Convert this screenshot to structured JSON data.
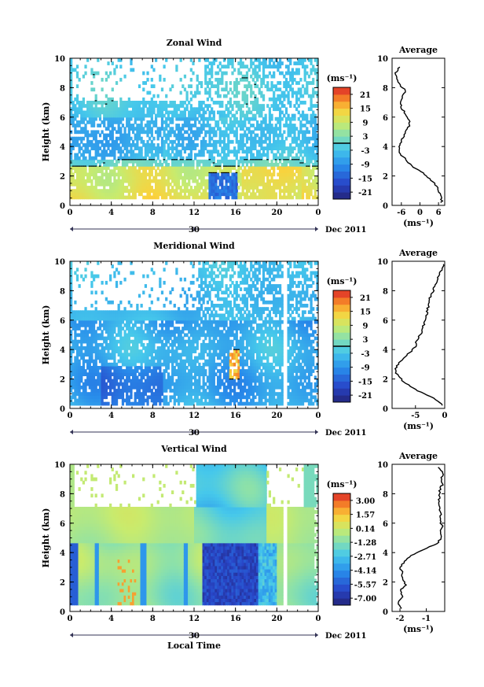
{
  "chart_data": [
    {
      "type": "heatmap",
      "title": "Zonal Wind",
      "ylabel": "Height (km)",
      "xlim": [
        0,
        24
      ],
      "ylim": [
        0,
        10
      ],
      "x_ticks": [
        "0",
        "4",
        "8",
        "12",
        "16",
        "20",
        "0"
      ],
      "y_ticks": [
        "0",
        "2",
        "4",
        "6",
        "8",
        "10"
      ],
      "date_tick": "30",
      "date_label": "Dec 2011",
      "colorbar": {
        "unit": "(ms⁻¹)",
        "range": [
          -24,
          24
        ],
        "ticks": [
          "21",
          "15",
          "9",
          "3",
          "-3",
          "-9",
          "-15",
          "-21"
        ],
        "contour_at": 0
      },
      "average": {
        "title": "Average",
        "xlabel": "(ms⁻¹)",
        "xlim": [
          -9,
          8
        ],
        "x_ticks": [
          "-6",
          "0",
          "6"
        ],
        "y_ticks": [
          "0",
          "2",
          "4",
          "6",
          "8",
          "10"
        ],
        "height": [
          0.2,
          0.6,
          1.0,
          1.4,
          1.8,
          2.2,
          2.6,
          3.0,
          3.4,
          3.8,
          4.2,
          4.6,
          5.0,
          5.4,
          5.8,
          6.2,
          6.6,
          7.0,
          7.4,
          7.8,
          8.2,
          8.6,
          9.0,
          9.4
        ],
        "values": [
          7,
          7,
          6,
          5,
          3,
          1,
          -2,
          -4,
          -6,
          -7,
          -6.5,
          -5.5,
          -4.5,
          -3.5,
          -3.5,
          -4.5,
          -5.8,
          -6.2,
          -5.5,
          -4.5,
          -6.5,
          -7.2,
          -8,
          -6.5
        ]
      }
    },
    {
      "type": "heatmap",
      "title": "Meridional Wind",
      "ylabel": "Height (km)",
      "xlim": [
        0,
        24
      ],
      "ylim": [
        0,
        10
      ],
      "x_ticks": [
        "0",
        "4",
        "8",
        "12",
        "16",
        "20",
        "0"
      ],
      "y_ticks": [
        "0",
        "2",
        "4",
        "6",
        "8",
        "10"
      ],
      "date_tick": "30",
      "date_label": "Dec 2011",
      "colorbar": {
        "unit": "(ms⁻¹)",
        "range": [
          -24,
          24
        ],
        "ticks": [
          "21",
          "15",
          "9",
          "3",
          "-3",
          "-9",
          "-15",
          "-21"
        ],
        "contour_at": 0
      },
      "average": {
        "title": "Average",
        "xlabel": "(ms⁻¹)",
        "xlim": [
          -9,
          0
        ],
        "x_ticks": [
          "-5",
          "0"
        ],
        "y_ticks": [
          "0",
          "2",
          "4",
          "6",
          "8",
          "10"
        ],
        "height": [
          0.2,
          0.6,
          1.0,
          1.4,
          1.8,
          2.2,
          2.6,
          3.0,
          3.4,
          3.8,
          4.2,
          4.6,
          5.0,
          5.4,
          5.8,
          6.2,
          6.6,
          7.0,
          7.4,
          7.8,
          8.2,
          8.6,
          9.0,
          9.4,
          9.8
        ],
        "values": [
          -0.3,
          -1.5,
          -3.5,
          -5.5,
          -7,
          -8,
          -8.5,
          -8,
          -7,
          -6,
          -5,
          -4.8,
          -4.2,
          -3.8,
          -3.5,
          -3.2,
          -3,
          -2.8,
          -2.6,
          -2.2,
          -1.8,
          -1.4,
          -1,
          -0.6,
          -0.2
        ]
      }
    },
    {
      "type": "heatmap",
      "title": "Vertical Wind",
      "ylabel": "Height (km)",
      "xlabel": "Local Time",
      "xlim": [
        0,
        24
      ],
      "ylim": [
        0,
        10
      ],
      "x_ticks": [
        "0",
        "4",
        "8",
        "12",
        "16",
        "20",
        "0"
      ],
      "y_ticks": [
        "0",
        "2",
        "4",
        "6",
        "8",
        "10"
      ],
      "date_tick": "30",
      "date_label": "Dec 2011",
      "colorbar": {
        "unit": "(ms⁻¹)",
        "range": [
          -7.8,
          3.8
        ],
        "ticks": [
          "3.00",
          "1.57",
          "0.14",
          "-1.28",
          "-2.71",
          "-4.14",
          "-5.57",
          "-7.00"
        ]
      },
      "average": {
        "title": "Average",
        "xlabel": "(ms⁻¹)",
        "xlim": [
          -2.3,
          -0.3
        ],
        "x_ticks": [
          "-2",
          "-1"
        ],
        "y_ticks": [
          "0",
          "2",
          "4",
          "6",
          "8",
          "10"
        ],
        "height": [
          0.2,
          0.6,
          1.0,
          1.4,
          1.8,
          2.2,
          2.6,
          3.0,
          3.4,
          3.8,
          4.2,
          4.6,
          5.0,
          5.4,
          5.8,
          6.2,
          6.6,
          7.0,
          7.4,
          7.8,
          8.2,
          8.6,
          9.0,
          9.4,
          9.8
        ],
        "values": [
          -1.9,
          -2.1,
          -1.9,
          -2.0,
          -1.8,
          -1.9,
          -1.9,
          -2.0,
          -1.8,
          -1.6,
          -1.1,
          -0.6,
          -0.45,
          -0.45,
          -0.4,
          -0.5,
          -0.45,
          -0.5,
          -0.55,
          -0.5,
          -0.5,
          -0.4,
          -0.45,
          -0.35,
          -0.55
        ]
      }
    }
  ]
}
